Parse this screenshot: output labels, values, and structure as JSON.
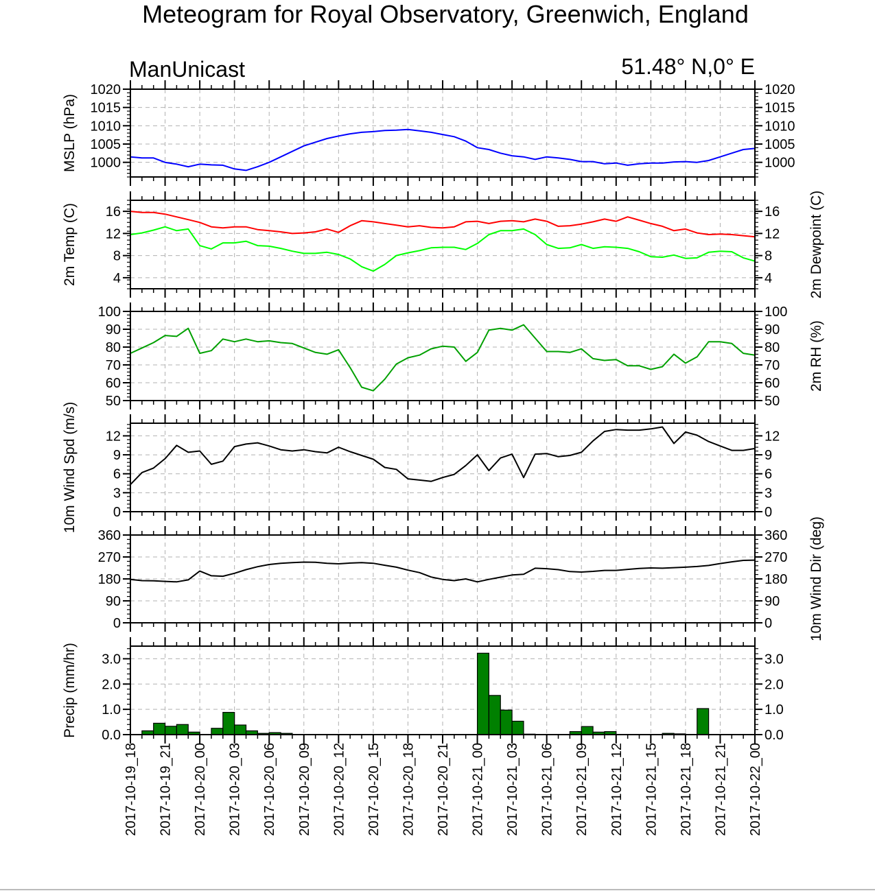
{
  "title": "Meteogram for Royal Observatory, Greenwich, England",
  "model": "ManUnicast",
  "location": "51.48° N,0° E",
  "x_tick_labels": [
    "2017-10-19_18",
    "2017-10-19_21",
    "2017-10-20_00",
    "2017-10-20_03",
    "2017-10-20_06",
    "2017-10-20_09",
    "2017-10-20_12",
    "2017-10-20_15",
    "2017-10-20_18",
    "2017-10-20_21",
    "2017-10-21_00",
    "2017-10-21_03",
    "2017-10-21_06",
    "2017-10-21_09",
    "2017-10-21_12",
    "2017-10-21_15",
    "2017-10-21_18",
    "2017-10-21_21",
    "2017-10-22_00"
  ],
  "colors": {
    "mslp": "#0000ff",
    "temp": "#ff0000",
    "dewpoint": "#00ff00",
    "rh": "#00a000",
    "wind": "#000000",
    "precip_fill": "#008000"
  },
  "chart_data": [
    {
      "type": "line",
      "x_start": "2017-10-19_18",
      "x_end": "2017-10-22_00",
      "x_step_hours": 1,
      "ylabel": "MSLP (hPa)",
      "ylim": [
        996,
        1020
      ],
      "yticks": [
        1000,
        1005,
        1010,
        1015,
        1020
      ],
      "right_axis": true,
      "grid": true,
      "series": [
        {
          "color": "blue",
          "values": [
            1001.5,
            1001.2,
            1001.2,
            1000,
            999.5,
            998.8,
            999.5,
            999.3,
            999.2,
            998.2,
            997.8,
            998.8,
            1000,
            1001.5,
            1003,
            1004.5,
            1005.5,
            1006.5,
            1007.2,
            1007.8,
            1008.2,
            1008.4,
            1008.7,
            1008.8,
            1009,
            1008.6,
            1008.2,
            1007.6,
            1007,
            1005.8,
            1004,
            1003.5,
            1002.5,
            1001.8,
            1001.5,
            1000.8,
            1001.5,
            1001.2,
            1000.8,
            1000.2,
            1000.2,
            999.6,
            999.8,
            999.2,
            999.6,
            999.8,
            999.8,
            1000.1,
            1000.2,
            1000,
            1000.5,
            1001.5,
            1002.5,
            1003.5,
            1003.8
          ]
        }
      ]
    },
    {
      "type": "line",
      "x_start": "2017-10-19_18",
      "x_end": "2017-10-22_00",
      "x_step_hours": 1,
      "ylabel": "2m Temp (C)",
      "y2label": "2m Dewpoint (C)",
      "ylim": [
        2,
        18
      ],
      "yticks": [
        4,
        8,
        12,
        16
      ],
      "grid": true,
      "series": [
        {
          "color": "red",
          "values": [
            16,
            15.8,
            15.8,
            15.5,
            15,
            14.5,
            14,
            13.2,
            13,
            13.2,
            13.2,
            12.7,
            12.5,
            12.3,
            12,
            12.1,
            12.3,
            12.8,
            12.2,
            13.4,
            14.3,
            14.1,
            13.8,
            13.5,
            13.2,
            13.4,
            13.1,
            13,
            13.2,
            14.1,
            14.2,
            13.8,
            14.2,
            14.3,
            14.1,
            14.6,
            14.2,
            13.3,
            13.4,
            13.7,
            14.1,
            14.6,
            14.2,
            15,
            14.4,
            13.8,
            13.3,
            12.5,
            12.8,
            12.1,
            11.8,
            11.9,
            11.8,
            11.6,
            11.4
          ]
        },
        {
          "color": "lime",
          "values": [
            11.8,
            12.1,
            12.6,
            13.2,
            12.5,
            12.8,
            9.8,
            9.2,
            10.3,
            10.3,
            10.6,
            9.8,
            9.7,
            9.3,
            8.8,
            8.4,
            8.4,
            8.6,
            8.2,
            7.4,
            6,
            5.2,
            6.4,
            8,
            8.5,
            8.9,
            9.4,
            9.5,
            9.5,
            9.1,
            10.2,
            11.8,
            12.5,
            12.5,
            12.8,
            11.8,
            10,
            9.3,
            9.4,
            10,
            9.3,
            9.6,
            9.5,
            9.3,
            8.7,
            7.8,
            7.7,
            8.1,
            7.5,
            7.6,
            8.6,
            8.8,
            8.7,
            7.6,
            7
          ]
        }
      ]
    },
    {
      "type": "line",
      "x_start": "2017-10-19_18",
      "x_end": "2017-10-22_00",
      "x_step_hours": 1,
      "y2label": "2m RH (%)",
      "ylim": [
        50,
        100
      ],
      "yticks": [
        50,
        60,
        70,
        80,
        90,
        100
      ],
      "grid": true,
      "series": [
        {
          "color": "green",
          "values": [
            76.5,
            79.5,
            82.5,
            86.5,
            86,
            90.5,
            76.5,
            78,
            84.5,
            83,
            84.5,
            83,
            83.5,
            82.5,
            82,
            79.5,
            77,
            76,
            78.5,
            68.5,
            57.5,
            55.5,
            62,
            70.5,
            74,
            75.5,
            79,
            80.5,
            80,
            72,
            77,
            89.5,
            90.5,
            89.5,
            92.5,
            85,
            77.5,
            77.5,
            77,
            79,
            73.5,
            72.5,
            73,
            69.5,
            69.5,
            67.5,
            69,
            76,
            71,
            74.5,
            83,
            83,
            82,
            76.5,
            75.5
          ]
        }
      ]
    },
    {
      "type": "line",
      "x_start": "2017-10-19_18",
      "x_end": "2017-10-22_00",
      "x_step_hours": 1,
      "ylabel": "10m Wind Spd (m/s)",
      "ylim": [
        0,
        14
      ],
      "yticks": [
        0,
        3,
        6,
        9,
        12
      ],
      "grid": true,
      "series": [
        {
          "color": "black",
          "values": [
            4.3,
            6.2,
            6.9,
            8.4,
            10.5,
            9.4,
            9.6,
            7.5,
            8,
            10.3,
            10.7,
            10.9,
            10.4,
            9.8,
            9.6,
            9.8,
            9.5,
            9.3,
            10.2,
            9.5,
            8.9,
            8.3,
            7,
            6.7,
            5.2,
            5,
            4.8,
            5.4,
            5.9,
            7.3,
            9,
            6.5,
            8.5,
            9.1,
            5.4,
            9.1,
            9.2,
            8.7,
            8.9,
            9.4,
            11.2,
            12.7,
            13,
            12.9,
            12.9,
            13.1,
            13.4,
            10.8,
            12.6,
            12.1,
            11.1,
            10.4,
            9.7,
            9.7,
            10
          ]
        }
      ]
    },
    {
      "type": "line",
      "x_start": "2017-10-19_18",
      "x_end": "2017-10-22_00",
      "x_step_hours": 1,
      "y2label": "10m Wind Dir (deg)",
      "ylim": [
        0,
        360
      ],
      "yticks": [
        0,
        90,
        180,
        270,
        360
      ],
      "grid": true,
      "series": [
        {
          "color": "black",
          "values": [
            178,
            173,
            172,
            170,
            168,
            176,
            212,
            193,
            191,
            203,
            218,
            230,
            239,
            244,
            247,
            249,
            248,
            244,
            242,
            245,
            247,
            244,
            236,
            228,
            216,
            206,
            188,
            178,
            173,
            180,
            168,
            178,
            187,
            196,
            199,
            224,
            222,
            218,
            210,
            208,
            211,
            215,
            215,
            219,
            223,
            225,
            224,
            226,
            228,
            231,
            235,
            243,
            250,
            256,
            257
          ]
        }
      ]
    },
    {
      "type": "bar",
      "x_start": "2017-10-19_18",
      "x_end": "2017-10-22_00",
      "x_step_hours": 1,
      "ylabel": "Precip (mm/hr)",
      "ylim": [
        0,
        3.5
      ],
      "yticks": [
        0.0,
        1.0,
        2.0,
        3.0
      ],
      "grid": true,
      "values": [
        0,
        0.15,
        0.45,
        0.33,
        0.4,
        0.1,
        0,
        0.25,
        0.88,
        0.38,
        0.15,
        0.05,
        0.08,
        0.05,
        0,
        0,
        0,
        0,
        0,
        0,
        0,
        0,
        0,
        0,
        0,
        0,
        0,
        0,
        0,
        0,
        3.22,
        1.55,
        0.97,
        0.53,
        0.02,
        0,
        0,
        0,
        0.12,
        0.32,
        0.1,
        0.12,
        0,
        0,
        0,
        0,
        0.05,
        0.03,
        0,
        1.03,
        0,
        0,
        0,
        0,
        0
      ]
    }
  ]
}
